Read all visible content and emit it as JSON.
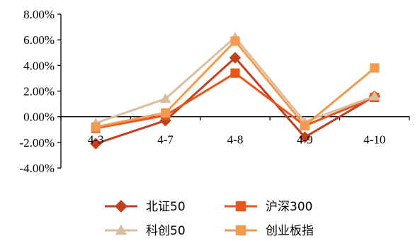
{
  "chart_data": {
    "type": "line",
    "categories": [
      "4-3",
      "4-7",
      "4-8",
      "4-9",
      "4-10"
    ],
    "ylim": [
      -0.04,
      0.08
    ],
    "ytick_labels": [
      "8.00%",
      "6.00%",
      "4.00%",
      "2.00%",
      "0.00%",
      "-2.00%",
      "-4.00%"
    ],
    "ytick_values": [
      0.08,
      0.06,
      0.04,
      0.02,
      0.0,
      -0.02,
      -0.04
    ],
    "grid": false,
    "legend_position": "bottom",
    "series": [
      {
        "name": "北证50",
        "values": [
          -0.021,
          -0.003,
          0.046,
          -0.016,
          0.016
        ],
        "color": "#C0401F",
        "marker": "diamond"
      },
      {
        "name": "沪深300",
        "values": [
          -0.009,
          0.001,
          0.034,
          -0.007,
          0.015
        ],
        "color": "#E9541C",
        "marker": "square"
      },
      {
        "name": "科创50",
        "values": [
          -0.005,
          0.014,
          0.062,
          -0.004,
          0.016
        ],
        "color": "#D9BFA0",
        "marker": "triangle"
      },
      {
        "name": "创业板指",
        "values": [
          -0.008,
          0.003,
          0.059,
          -0.007,
          0.038
        ],
        "color": "#F29A50",
        "marker": "square"
      }
    ]
  }
}
